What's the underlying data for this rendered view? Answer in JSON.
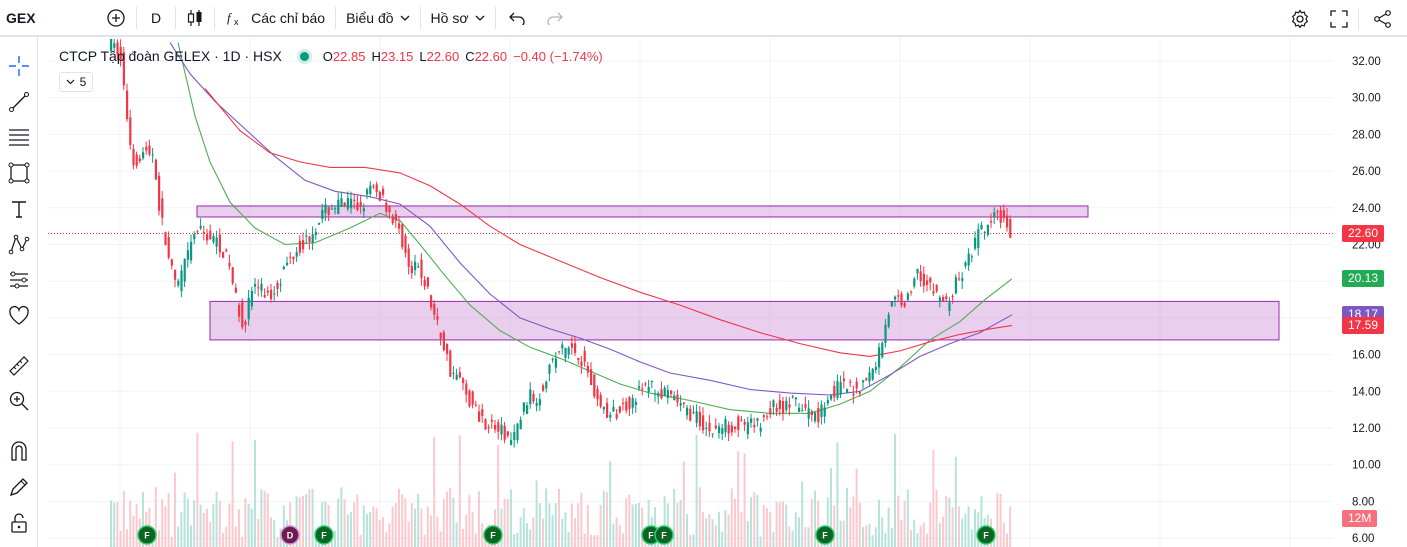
{
  "toolbar": {
    "symbol": "GEX",
    "interval": "D",
    "indicators_label": "Các chỉ báo",
    "chart_layout_label": "Biểu đồ",
    "profile_label": "Hồ sơ"
  },
  "legend": {
    "title": "CTCP Tập đoàn GELEX · 1D · HSX",
    "open_label": "O",
    "open": "22.85",
    "high_label": "H",
    "high": "23.15",
    "low_label": "L",
    "low": "22.60",
    "close_label": "C",
    "close": "22.60",
    "change": "−0.40 (−1.74%)",
    "collapsed_count": "5"
  },
  "price_axis": {
    "ticks": [
      "32.00",
      "30.00",
      "28.00",
      "26.00",
      "24.00",
      "22.00",
      "20.00",
      "18.00",
      "16.00",
      "14.00",
      "12.00",
      "10.00",
      "8.00",
      "6.00"
    ],
    "badges": [
      {
        "label": "22.60",
        "color": "#f23645"
      },
      {
        "label": "20.13",
        "color": "#22ab55"
      },
      {
        "label": "18.17",
        "color": "#7e57c2"
      },
      {
        "label": "17.59",
        "color": "#f23645"
      },
      {
        "label": "12M",
        "color": "#f7707d"
      }
    ]
  },
  "events": [
    {
      "label": "F"
    },
    {
      "label": "D"
    },
    {
      "label": "F"
    },
    {
      "label": "F"
    },
    {
      "label": "F"
    },
    {
      "label": "F"
    },
    {
      "label": "F"
    },
    {
      "label": "F"
    }
  ],
  "chart_data": {
    "type": "candlestick",
    "y_range": [
      6,
      33
    ],
    "last_price": 22.6,
    "ma_green_last": 20.13,
    "ma_purple_last": 18.17,
    "ma_red_last": 17.59,
    "zones": [
      {
        "low": 23.5,
        "high": 24.1
      },
      {
        "low": 16.8,
        "high": 18.9
      }
    ],
    "colors": {
      "up": "#089981",
      "down": "#f23645",
      "ma_green": "#4caf50",
      "ma_purple": "#7e57c2",
      "ma_red": "#f23645",
      "zone": "#ce93d8"
    }
  }
}
